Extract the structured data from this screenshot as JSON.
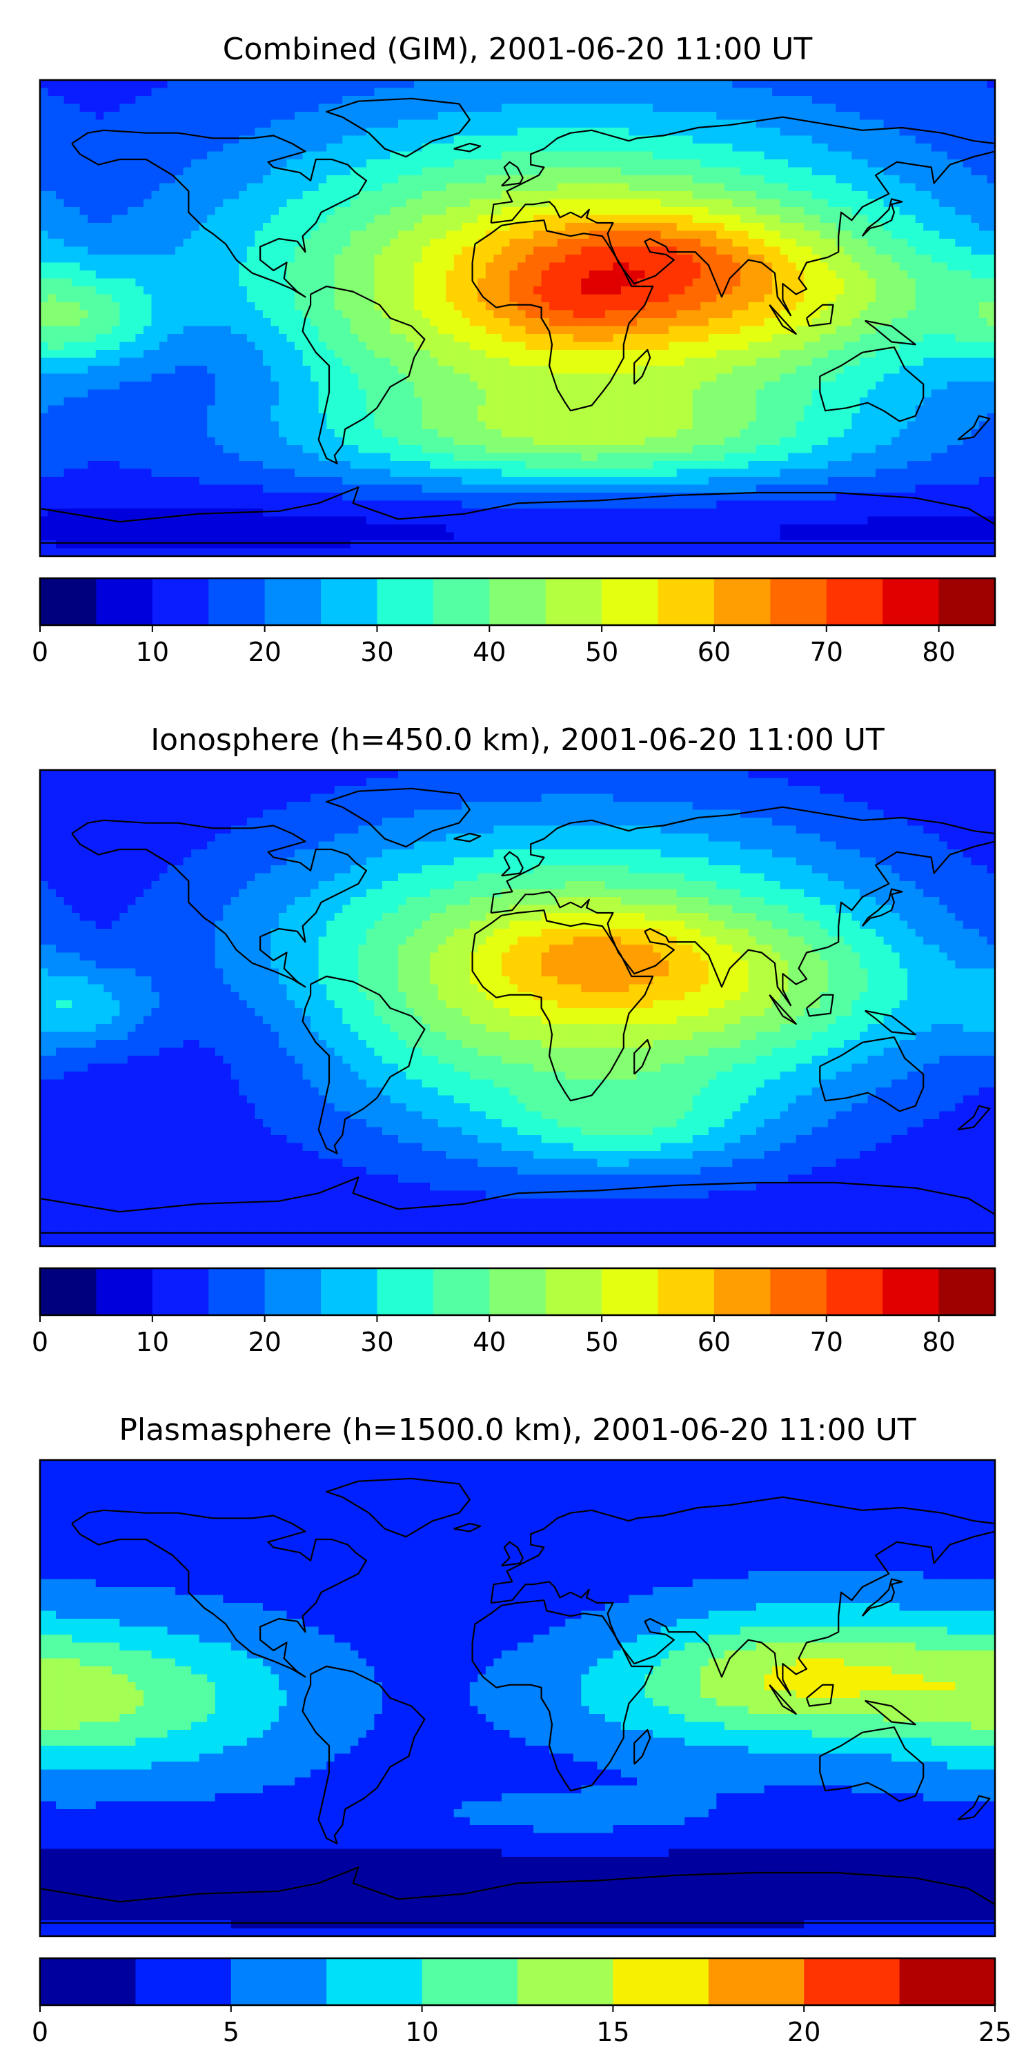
{
  "chart_data": [
    {
      "type": "heatmap",
      "title": "Combined (GIM), 2001-06-20 11:00 UT",
      "colorbar": {
        "ticks": [
          0,
          10,
          20,
          30,
          40,
          50,
          60,
          70,
          80
        ],
        "range": [
          0,
          85
        ],
        "levels": [
          0,
          5,
          10,
          15,
          20,
          25,
          30,
          35,
          40,
          45,
          50,
          55,
          60,
          65,
          70,
          75,
          80,
          85
        ],
        "colors": [
          "#00007f",
          "#0000dc",
          "#0a1dff",
          "#0054ff",
          "#008cff",
          "#00c4ff",
          "#24ffd3",
          "#54ffa3",
          "#85ff72",
          "#b5ff41",
          "#e5ff11",
          "#ffd200",
          "#ff9e00",
          "#ff6900",
          "#ff3400",
          "#e10000",
          "#9f0000"
        ]
      },
      "field": {
        "background": 13,
        "blobs": [
          {
            "lon": 22,
            "lat": 12,
            "slon": 90,
            "slat": 42,
            "amp": 46
          },
          {
            "lon": 45,
            "lat": 24,
            "slon": 35,
            "slat": 12,
            "amp": 12
          },
          {
            "lon": 20,
            "lat": 5,
            "slon": 22,
            "slat": 9,
            "amp": 8
          },
          {
            "lon": 105,
            "lat": 10,
            "slon": 55,
            "slat": 18,
            "amp": 12
          },
          {
            "lon": -165,
            "lat": 0,
            "slon": 22,
            "slat": 14,
            "amp": 18
          },
          {
            "lon": 30,
            "lat": -45,
            "slon": 70,
            "slat": 12,
            "amp": 16
          },
          {
            "lon": -110,
            "lat": -15,
            "slon": 25,
            "slat": 15,
            "amp": -5
          },
          {
            "lon": 0,
            "lat": -78,
            "slon": 200,
            "slat": 10,
            "amp": -7
          }
        ]
      }
    },
    {
      "type": "heatmap",
      "title": "Ionosphere  (h=450.0 km), 2001-06-20 11:00 UT",
      "colorbar": {
        "ticks": [
          0,
          10,
          20,
          30,
          40,
          50,
          60,
          70,
          80
        ],
        "range": [
          0,
          85
        ],
        "levels": [
          0,
          5,
          10,
          15,
          20,
          25,
          30,
          35,
          40,
          45,
          50,
          55,
          60,
          65,
          70,
          75,
          80,
          85
        ],
        "colors": [
          "#00007f",
          "#0000dc",
          "#0a1dff",
          "#0054ff",
          "#008cff",
          "#00c4ff",
          "#24ffd3",
          "#54ffa3",
          "#85ff72",
          "#b5ff41",
          "#e5ff11",
          "#ffd200",
          "#ff9e00",
          "#ff6900",
          "#ff3400",
          "#e10000",
          "#9f0000"
        ]
      },
      "field": {
        "background": 10,
        "blobs": [
          {
            "lon": 22,
            "lat": 12,
            "slon": 85,
            "slat": 40,
            "amp": 42
          },
          {
            "lon": 30,
            "lat": 20,
            "slon": 30,
            "slat": 12,
            "amp": 10
          },
          {
            "lon": 40,
            "lat": -45,
            "slon": 35,
            "slat": 12,
            "amp": 12
          },
          {
            "lon": 100,
            "lat": 10,
            "slon": 50,
            "slat": 18,
            "amp": 8
          },
          {
            "lon": -165,
            "lat": 0,
            "slon": 20,
            "slat": 12,
            "amp": 14
          },
          {
            "lon": -100,
            "lat": -10,
            "slon": 35,
            "slat": 20,
            "amp": -5
          }
        ]
      }
    },
    {
      "type": "heatmap",
      "title": "Plasmasphere (h=1500.0 km), 2001-06-20 11:00 UT",
      "colorbar": {
        "ticks": [
          0,
          5,
          10,
          15,
          20,
          25
        ],
        "range": [
          0,
          25
        ],
        "levels": [
          0,
          2.5,
          5,
          7.5,
          10,
          12.5,
          15,
          17.5,
          20,
          22.5,
          25
        ],
        "colors": [
          "#00009f",
          "#0021ff",
          "#0081ff",
          "#00e1f7",
          "#54ffa3",
          "#a3ff54",
          "#f7f000",
          "#ff9800",
          "#ff3400",
          "#b20000"
        ]
      },
      "field": {
        "background": 4,
        "blobs": [
          {
            "lon": -130,
            "lat": 0,
            "slon": 40,
            "slat": 20,
            "amp": 6
          },
          {
            "lon": -180,
            "lat": 0,
            "slon": 30,
            "slat": 20,
            "amp": 5
          },
          {
            "lon": 110,
            "lat": 8,
            "slon": 45,
            "slat": 18,
            "amp": 11
          },
          {
            "lon": 40,
            "lat": 0,
            "slon": 40,
            "slat": 15,
            "amp": 2
          },
          {
            "lon": 20,
            "lat": -48,
            "slon": 55,
            "slat": 10,
            "amp": 2
          },
          {
            "lon": 0,
            "lat": -70,
            "slon": 200,
            "slat": 12,
            "amp": -4
          }
        ]
      }
    }
  ]
}
